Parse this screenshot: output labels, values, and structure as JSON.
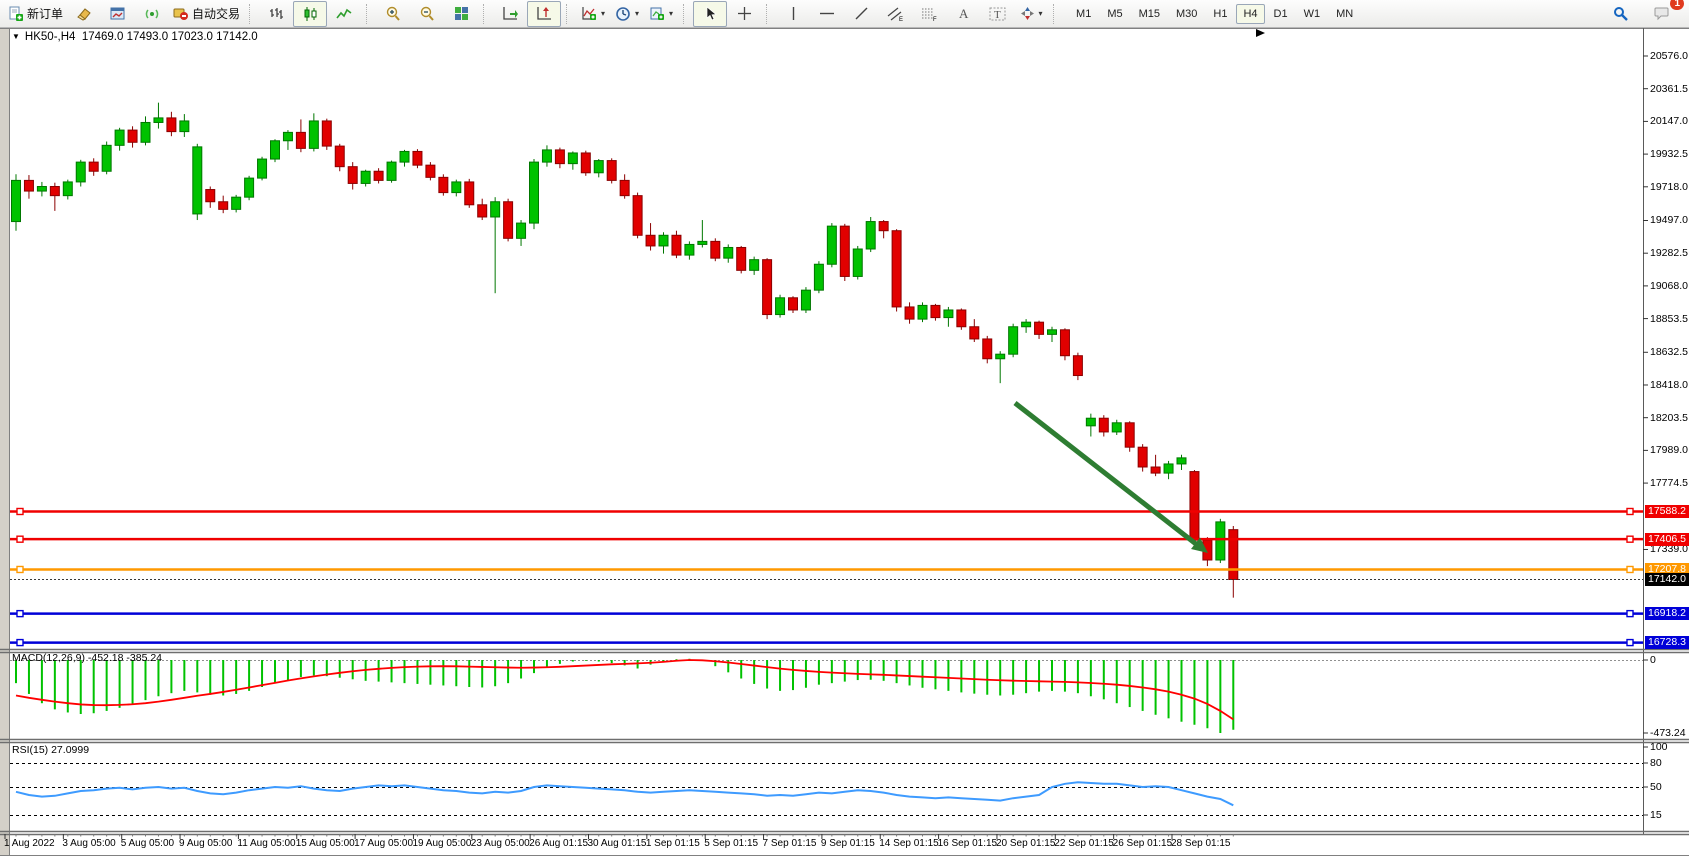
{
  "toolbar": {
    "buttons": [
      {
        "name": "new-order",
        "label": "新订单"
      },
      {
        "name": "eraser"
      },
      {
        "name": "chart-window"
      },
      {
        "name": "signal"
      },
      {
        "name": "autotrade",
        "label": "自动交易"
      },
      {
        "sep": true
      },
      {
        "name": "bar-chart"
      },
      {
        "name": "candlestick",
        "active": true
      },
      {
        "name": "line-chart"
      },
      {
        "sep": true
      },
      {
        "name": "zoom-in"
      },
      {
        "name": "zoom-out"
      },
      {
        "name": "tile-windows"
      },
      {
        "sep": true
      },
      {
        "name": "auto-scroll"
      },
      {
        "name": "chart-shift",
        "active": true
      },
      {
        "sep": true
      },
      {
        "name": "indicators",
        "caret": true
      },
      {
        "name": "periods",
        "caret": true
      },
      {
        "name": "templates",
        "caret": true
      },
      {
        "sep": true
      },
      {
        "name": "cursor",
        "active": true
      },
      {
        "name": "crosshair"
      },
      {
        "sep": true
      },
      {
        "name": "vertical-line"
      },
      {
        "name": "horizontal-line"
      },
      {
        "name": "trendline"
      },
      {
        "name": "equidistant-channel"
      },
      {
        "name": "fibonacci"
      },
      {
        "name": "text"
      },
      {
        "name": "text-label"
      },
      {
        "name": "arrows",
        "caret": true
      },
      {
        "sep": true
      }
    ],
    "timeframes": [
      {
        "label": "M1"
      },
      {
        "label": "M5"
      },
      {
        "label": "M15"
      },
      {
        "label": "M30"
      },
      {
        "label": "H1"
      },
      {
        "label": "H4",
        "active": true
      },
      {
        "label": "D1"
      },
      {
        "label": "W1"
      },
      {
        "label": "MN"
      }
    ],
    "notification_badge": "1"
  },
  "chart_title": {
    "symbol": "HK50-,H4",
    "ohlc": "17469.0 17493.0 17023.0 17142.0"
  },
  "chart_data": {
    "type": "candlestick",
    "price_axis_ticks": [
      "20576.0",
      "20361.5",
      "20147.0",
      "19932.5",
      "19718.0",
      "19497.0",
      "19282.5",
      "19068.0",
      "18853.5",
      "18632.5",
      "18418.0",
      "18203.5",
      "17989.0",
      "17774.5",
      "17339.0"
    ],
    "price_lines": [
      {
        "price": 17588.2,
        "label": "17588.2",
        "color": "#f00000",
        "handles": true
      },
      {
        "price": 17406.5,
        "label": "17406.5",
        "color": "#f00000",
        "handles": true
      },
      {
        "price": 17207.8,
        "label": "17207.8",
        "color": "#ff9900",
        "handles": true
      },
      {
        "price": 17142.0,
        "label": "17142.0",
        "color": "#3a3a3a",
        "bg": "#000000",
        "style": "dotted",
        "handles": false
      },
      {
        "price": 16918.2,
        "label": "16918.2",
        "color": "#0000d8",
        "handles": true
      },
      {
        "price": 16728.3,
        "label": "16728.3",
        "color": "#0000d8",
        "handles": true
      }
    ],
    "candles": [
      [
        19490,
        19800,
        19430,
        19760
      ],
      [
        19760,
        19795,
        19640,
        19690
      ],
      [
        19690,
        19750,
        19655,
        19720
      ],
      [
        19720,
        19745,
        19560,
        19660
      ],
      [
        19660,
        19765,
        19635,
        19750
      ],
      [
        19750,
        19895,
        19720,
        19880
      ],
      [
        19880,
        19905,
        19790,
        19820
      ],
      [
        19820,
        20015,
        19800,
        19990
      ],
      [
        19990,
        20105,
        19955,
        20090
      ],
      [
        20090,
        20115,
        19975,
        20010
      ],
      [
        20010,
        20180,
        19990,
        20140
      ],
      [
        20140,
        20270,
        20100,
        20170
      ],
      [
        20170,
        20210,
        20050,
        20080
      ],
      [
        20080,
        20195,
        20045,
        20150
      ],
      [
        19540,
        20000,
        19500,
        19980
      ],
      [
        19700,
        19720,
        19580,
        19620
      ],
      [
        19620,
        19660,
        19545,
        19570
      ],
      [
        19570,
        19665,
        19550,
        19650
      ],
      [
        19650,
        19790,
        19630,
        19775
      ],
      [
        19775,
        19915,
        19760,
        19900
      ],
      [
        19900,
        20030,
        19880,
        20020
      ],
      [
        20020,
        20090,
        19960,
        20075
      ],
      [
        20075,
        20160,
        19945,
        19970
      ],
      [
        19970,
        20200,
        19950,
        20150
      ],
      [
        20150,
        20165,
        19960,
        19985
      ],
      [
        19985,
        20000,
        19820,
        19850
      ],
      [
        19850,
        19880,
        19700,
        19740
      ],
      [
        19740,
        19830,
        19720,
        19820
      ],
      [
        19820,
        19840,
        19740,
        19760
      ],
      [
        19760,
        19890,
        19745,
        19880
      ],
      [
        19880,
        19960,
        19850,
        19950
      ],
      [
        19950,
        19965,
        19840,
        19860
      ],
      [
        19860,
        19880,
        19760,
        19780
      ],
      [
        19780,
        19800,
        19660,
        19680
      ],
      [
        19680,
        19765,
        19655,
        19750
      ],
      [
        19750,
        19770,
        19580,
        19600
      ],
      [
        19600,
        19640,
        19500,
        19520
      ],
      [
        19520,
        19650,
        19020,
        19620
      ],
      [
        19620,
        19640,
        19360,
        19380
      ],
      [
        19380,
        19500,
        19330,
        19480
      ],
      [
        19480,
        19900,
        19440,
        19880
      ],
      [
        19880,
        19990,
        19850,
        19960
      ],
      [
        19960,
        19975,
        19840,
        19870
      ],
      [
        19870,
        19950,
        19830,
        19940
      ],
      [
        19940,
        19955,
        19790,
        19810
      ],
      [
        19810,
        19900,
        19780,
        19890
      ],
      [
        19890,
        19905,
        19740,
        19760
      ],
      [
        19760,
        19800,
        19640,
        19660
      ],
      [
        19660,
        19680,
        19380,
        19400
      ],
      [
        19400,
        19480,
        19300,
        19330
      ],
      [
        19330,
        19420,
        19280,
        19400
      ],
      [
        19400,
        19430,
        19250,
        19270
      ],
      [
        19270,
        19360,
        19240,
        19340
      ],
      [
        19340,
        19500,
        19320,
        19360
      ],
      [
        19360,
        19380,
        19230,
        19250
      ],
      [
        19250,
        19340,
        19220,
        19320
      ],
      [
        19320,
        19330,
        19150,
        19170
      ],
      [
        19170,
        19260,
        19140,
        19240
      ],
      [
        19240,
        19250,
        18850,
        18880
      ],
      [
        18880,
        19010,
        18860,
        18990
      ],
      [
        18990,
        19000,
        18890,
        18910
      ],
      [
        18910,
        19060,
        18890,
        19040
      ],
      [
        19040,
        19230,
        19020,
        19210
      ],
      [
        19210,
        19480,
        19190,
        19460
      ],
      [
        19460,
        19475,
        19100,
        19130
      ],
      [
        19130,
        19330,
        19110,
        19310
      ],
      [
        19310,
        19520,
        19290,
        19490
      ],
      [
        19490,
        19500,
        19380,
        19430
      ],
      [
        19430,
        19440,
        18900,
        18930
      ],
      [
        18930,
        18960,
        18820,
        18850
      ],
      [
        18850,
        18960,
        18830,
        18940
      ],
      [
        18940,
        18950,
        18840,
        18860
      ],
      [
        18860,
        18930,
        18800,
        18910
      ],
      [
        18910,
        18920,
        18780,
        18800
      ],
      [
        18800,
        18850,
        18700,
        18720
      ],
      [
        18720,
        18740,
        18560,
        18590
      ],
      [
        18590,
        18640,
        18430,
        18620
      ],
      [
        18620,
        18820,
        18600,
        18800
      ],
      [
        18800,
        18850,
        18760,
        18830
      ],
      [
        18830,
        18840,
        18720,
        18750
      ],
      [
        18750,
        18800,
        18700,
        18780
      ],
      [
        18780,
        18790,
        18580,
        18610
      ],
      [
        18610,
        18630,
        18450,
        18480
      ],
      [
        18150,
        18230,
        18080,
        18200
      ],
      [
        18200,
        18220,
        18080,
        18110
      ],
      [
        18110,
        18190,
        18090,
        18170
      ],
      [
        18170,
        18180,
        17980,
        18010
      ],
      [
        18010,
        18030,
        17850,
        17880
      ],
      [
        17880,
        17960,
        17820,
        17840
      ],
      [
        17840,
        17920,
        17800,
        17900
      ],
      [
        17900,
        17960,
        17860,
        17940
      ],
      [
        17850,
        17860,
        17380,
        17400
      ],
      [
        17400,
        17420,
        17230,
        17270
      ],
      [
        17270,
        17540,
        17250,
        17520
      ],
      [
        17469,
        17493,
        17023,
        17142
      ]
    ],
    "macd": {
      "label": "MACD(12,26,9) -452.18 -385.24",
      "axis_labels": [
        "0",
        "-473.24"
      ],
      "hist": [
        -150,
        -220,
        -280,
        -320,
        -340,
        -350,
        -345,
        -330,
        -310,
        -285,
        -260,
        -235,
        -215,
        -200,
        -210,
        -225,
        -230,
        -220,
        -200,
        -175,
        -150,
        -130,
        -110,
        -100,
        -105,
        -115,
        -125,
        -135,
        -140,
        -145,
        -150,
        -155,
        -160,
        -165,
        -170,
        -175,
        -178,
        -170,
        -150,
        -120,
        -85,
        -50,
        -25,
        -10,
        -5,
        -10,
        -20,
        -35,
        -55,
        -30,
        -10,
        5,
        8,
        -5,
        -40,
        -80,
        -120,
        -155,
        -185,
        -200,
        -195,
        -180,
        -160,
        -150,
        -140,
        -130,
        -128,
        -135,
        -150,
        -165,
        -180,
        -190,
        -200,
        -210,
        -218,
        -225,
        -230,
        -225,
        -215,
        -205,
        -200,
        -205,
        -215,
        -235,
        -255,
        -280,
        -305,
        -330,
        -355,
        -378,
        -400,
        -420,
        -442,
        -473,
        -452
      ],
      "signal": [
        -230,
        -245,
        -258,
        -270,
        -280,
        -288,
        -292,
        -293,
        -291,
        -287,
        -280,
        -270,
        -258,
        -245,
        -232,
        -220,
        -207,
        -193,
        -178,
        -163,
        -148,
        -133,
        -119,
        -106,
        -94,
        -83,
        -73,
        -64,
        -57,
        -51,
        -46,
        -43,
        -41,
        -40,
        -41,
        -43,
        -45,
        -47,
        -49,
        -50,
        -49,
        -47,
        -44,
        -40,
        -36,
        -32,
        -28,
        -25,
        -22,
        -18,
        -12,
        -5,
        0,
        -2,
        -8,
        -16,
        -26,
        -36,
        -46,
        -56,
        -64,
        -71,
        -77,
        -82,
        -86,
        -90,
        -93,
        -96,
        -100,
        -104,
        -108,
        -112,
        -116,
        -120,
        -124,
        -128,
        -131,
        -134,
        -136,
        -138,
        -140,
        -142,
        -145,
        -149,
        -154,
        -160,
        -168,
        -178,
        -190,
        -205,
        -225,
        -250,
        -285,
        -330,
        -385
      ]
    },
    "rsi": {
      "label": "RSI(15) 27.0999",
      "level_labels": [
        "100",
        "80",
        "50",
        "15"
      ],
      "values": [
        44,
        40,
        38,
        39,
        42,
        45,
        46,
        48,
        49,
        47,
        49,
        50,
        48,
        49,
        45,
        42,
        41,
        43,
        46,
        48,
        50,
        49,
        51,
        48,
        46,
        45,
        48,
        50,
        52,
        51,
        52,
        50,
        48,
        46,
        45,
        43,
        42,
        44,
        43,
        45,
        50,
        52,
        51,
        50,
        49,
        48,
        47,
        46,
        44,
        43,
        44,
        45,
        46,
        45,
        44,
        43,
        42,
        41,
        39,
        40,
        39,
        41,
        43,
        42,
        44,
        46,
        45,
        43,
        40,
        38,
        37,
        36,
        37,
        36,
        35,
        34,
        33,
        36,
        38,
        40,
        50,
        54,
        56,
        55,
        54,
        54,
        52,
        50,
        51,
        50,
        46,
        42,
        38,
        35,
        27.1
      ]
    },
    "time_labels": [
      "1 Aug 2022",
      "3 Aug 05:00",
      "5 Aug 05:00",
      "9 Aug 05:00",
      "11 Aug 05:00",
      "15 Aug 05:00",
      "17 Aug 05:00",
      "19 Aug 05:00",
      "23 Aug 05:00",
      "26 Aug 01:15",
      "30 Aug 01:15",
      "1 Sep 01:15",
      "5 Sep 01:15",
      "7 Sep 01:15",
      "9 Sep 01:15",
      "14 Sep 01:15",
      "16 Sep 01:15",
      "20 Sep 01:15",
      "22 Sep 01:15",
      "26 Sep 01:15",
      "28 Sep 01:15"
    ],
    "arrow_annotation": {
      "color": "#2e7d32"
    }
  },
  "colors": {
    "bull": "#00c200",
    "bull_edge": "#007700",
    "bear": "#e10000",
    "bear_edge": "#8b0000",
    "macd_hist": "#00c200",
    "macd_signal": "#ff0000",
    "rsi_line": "#3e9bff"
  }
}
